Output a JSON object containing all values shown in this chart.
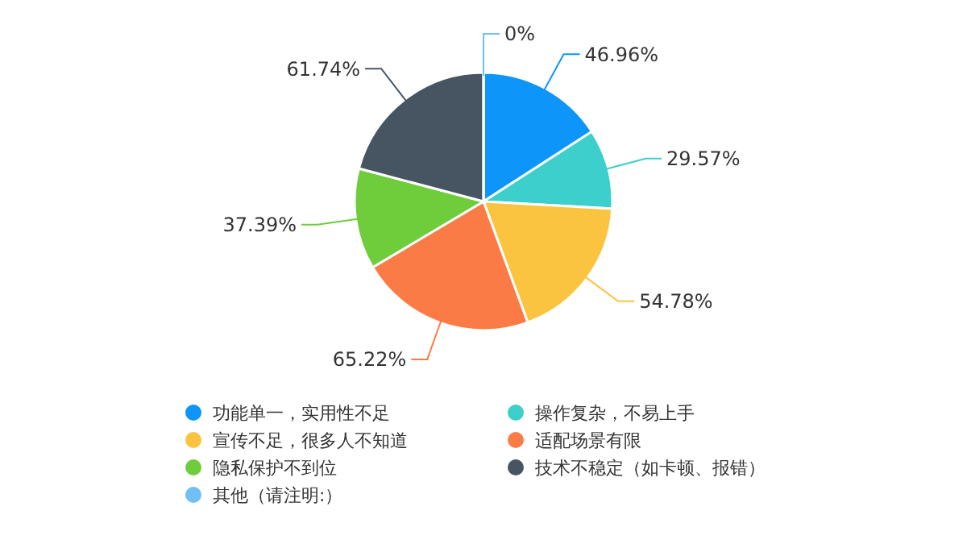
{
  "chart_data": {
    "type": "pie",
    "categories": [
      "功能单一，实用性不足",
      "操作复杂，不易上手",
      "宣传不足，很多人不知道",
      "适配场景有限",
      "隐私保护不到位",
      "技术不稳定（如卡顿、报错）",
      "其他（请注明:）"
    ],
    "values": [
      46.96,
      29.57,
      54.78,
      65.22,
      37.39,
      61.74,
      0
    ],
    "value_labels": [
      "46.96%",
      "29.57%",
      "54.78%",
      "65.22%",
      "37.39%",
      "61.74%",
      "0%"
    ],
    "colors": [
      "#0d95fa",
      "#3ccfcb",
      "#fbc440",
      "#fb7b46",
      "#6fcd3c",
      "#475562",
      "#70bff5"
    ],
    "legend": "bottom"
  }
}
